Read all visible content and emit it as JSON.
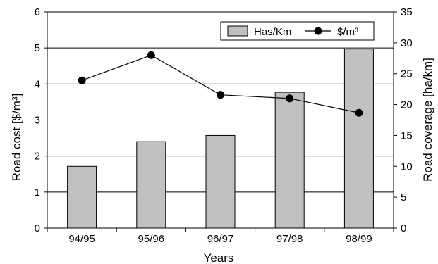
{
  "chart_data": {
    "type": "bar",
    "categories": [
      "94/95",
      "95/96",
      "96/97",
      "97/98",
      "98/99"
    ],
    "series": [
      {
        "name": "Has/Km",
        "type": "bar",
        "axis": "right",
        "values": [
          10,
          14,
          15,
          22,
          29
        ],
        "color": "#c0c0c0"
      },
      {
        "name": "$/m³",
        "type": "line",
        "axis": "left",
        "values": [
          4.1,
          4.8,
          3.7,
          3.6,
          3.2
        ],
        "color": "#000000"
      }
    ],
    "xlabel": "Years",
    "ylabel_left": "Road cost [$/m³]",
    "ylabel_right": "Road coverage [ha/km]",
    "ylim_left": [
      0,
      6
    ],
    "ylim_right": [
      0,
      35
    ],
    "yticks_left": [
      "0",
      "1",
      "2",
      "3",
      "4",
      "5",
      "6"
    ],
    "yticks_right": [
      "0",
      "5",
      "10",
      "15",
      "20",
      "25",
      "30",
      "35"
    ],
    "grid": "horizontal",
    "legend": {
      "position": "top-right",
      "items": [
        "Has/Km",
        "$/m³"
      ]
    }
  }
}
